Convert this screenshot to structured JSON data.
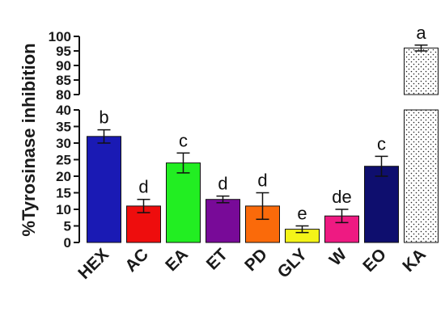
{
  "chart_data": {
    "type": "bar",
    "ylabel": "%Tyrosinase inhibition",
    "xlabel": "",
    "title": "",
    "categories": [
      "HEX",
      "AC",
      "EA",
      "ET",
      "PD",
      "GLY",
      "W",
      "EO",
      "KA"
    ],
    "values": [
      32,
      11,
      24,
      13,
      11,
      4,
      8,
      23,
      96
    ],
    "errors": [
      2,
      2,
      3,
      1,
      4,
      1,
      2,
      3,
      1
    ],
    "significance": [
      "b",
      "d",
      "c",
      "d",
      "d",
      "e",
      "de",
      "c",
      "a"
    ],
    "colors": [
      "#1a1ab4",
      "#ee0d0d",
      "#22ee22",
      "#780a98",
      "#fa6a0a",
      "#f4f418",
      "#ee1a82",
      "#0e0e6e",
      "#ffffff"
    ],
    "patterns": [
      "solid",
      "solid",
      "solid",
      "solid",
      "solid",
      "solid",
      "solid",
      "solid",
      "dotted"
    ],
    "y_axis": {
      "broken": true,
      "lower_segment": {
        "range": [
          0,
          40
        ],
        "ticks": [
          "0",
          "5",
          "10",
          "15",
          "20",
          "25",
          "30",
          "35",
          "40"
        ]
      },
      "upper_segment": {
        "range": [
          80,
          100
        ],
        "ticks": [
          "80",
          "85",
          "90",
          "95",
          "100"
        ]
      }
    },
    "grid": false,
    "legend": "none"
  }
}
